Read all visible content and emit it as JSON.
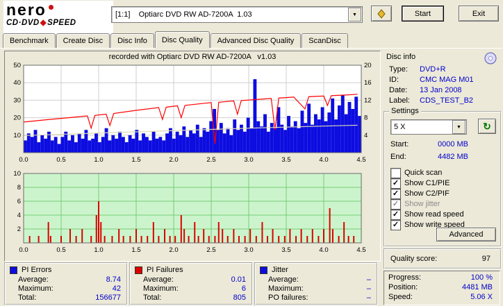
{
  "logo": {
    "line1": "nero",
    "line2_left": "CD·DVD",
    "line2_sep": "◆",
    "line2_right": "SPEED"
  },
  "icons": {
    "dropdown_arrow": "▼",
    "refresh": "↻",
    "check": "✓"
  },
  "toolbar": {
    "drive_selector": "[1:1]    Optiarc DVD RW AD-7200A  1.03",
    "start_label": "Start",
    "exit_label": "Exit"
  },
  "tabs": [
    {
      "label": "Benchmark",
      "active": false
    },
    {
      "label": "Create Disc",
      "active": false
    },
    {
      "label": "Disc Info",
      "active": false
    },
    {
      "label": "Disc Quality",
      "active": true
    },
    {
      "label": "Advanced Disc Quality",
      "active": false
    },
    {
      "label": "ScanDisc",
      "active": false
    }
  ],
  "disc_info": {
    "title": "Disc info",
    "rows": [
      {
        "label": "Type:",
        "value": "DVD+R"
      },
      {
        "label": "ID:",
        "value": "CMC MAG M01"
      },
      {
        "label": "Date:",
        "value": "13 Jan 2008"
      },
      {
        "label": "Label:",
        "value": "CDS_TEST_B2"
      }
    ]
  },
  "settings": {
    "title": "Settings",
    "speed_value": "5 X",
    "start_label": "Start:",
    "start_value": "0000 MB",
    "end_label": "End:",
    "end_value": "4482 MB",
    "checkboxes": [
      {
        "label": "Quick scan",
        "checked": false,
        "disabled": false
      },
      {
        "label": "Show C1/PIE",
        "checked": true,
        "disabled": false
      },
      {
        "label": "Show C2/PIF",
        "checked": true,
        "disabled": false
      },
      {
        "label": "Show jitter",
        "checked": true,
        "disabled": true
      },
      {
        "label": "Show read speed",
        "checked": true,
        "disabled": false
      },
      {
        "label": "Show write speed",
        "checked": true,
        "disabled": false
      }
    ],
    "advanced_label": "Advanced"
  },
  "quality": {
    "label": "Quality score:",
    "value": "97"
  },
  "progress": {
    "rows": [
      {
        "label": "Progress:",
        "value": "100 %"
      },
      {
        "label": "Position:",
        "value": "4481 MB"
      },
      {
        "label": "Speed:",
        "value": "5.06 X"
      }
    ]
  },
  "stats": [
    {
      "title": "PI Errors",
      "color": "#0d0de0",
      "rows": [
        {
          "label": "Average:",
          "value": "8.74"
        },
        {
          "label": "Maximum:",
          "value": "42"
        },
        {
          "label": "Total:",
          "value": "156677"
        }
      ]
    },
    {
      "title": "PI Failures",
      "color": "#dd0000",
      "rows": [
        {
          "label": "Average:",
          "value": "0.01"
        },
        {
          "label": "Maximum:",
          "value": "6"
        },
        {
          "label": "Total:",
          "value": "805"
        }
      ]
    },
    {
      "title": "Jitter",
      "color": "#0d0de0",
      "rows": [
        {
          "label": "Average:",
          "value": "–"
        },
        {
          "label": "Maximum:",
          "value": "–"
        },
        {
          "label": "PO failures:",
          "value": "–"
        }
      ]
    }
  ],
  "chart_data": [
    {
      "type": "bar",
      "title": "recorded with Optiarc DVD RW AD-7200A   v1.03",
      "xlim": [
        0,
        4.5
      ],
      "x_ticks": [
        "0.0",
        "0.5",
        "1.0",
        "1.5",
        "2.0",
        "2.5",
        "3.0",
        "3.5",
        "4.0",
        "4.5"
      ],
      "ylim_left": [
        0,
        50
      ],
      "yticks_left": [
        10,
        20,
        30,
        40,
        50
      ],
      "ylim_right": [
        0,
        20
      ],
      "yticks_right": [
        4,
        8,
        12,
        16,
        20
      ],
      "bar_series": {
        "name": "PI Errors",
        "color": "#0d0de0",
        "x_start": 0,
        "x_step": 0.045,
        "values": [
          7,
          11,
          9,
          13,
          6,
          10,
          8,
          12,
          7,
          9,
          5,
          9,
          12,
          7,
          10,
          6,
          11,
          8,
          13,
          7,
          8,
          11,
          6,
          9,
          14,
          7,
          10,
          8,
          12,
          9,
          6,
          10,
          8,
          13,
          7,
          11,
          9,
          7,
          12,
          8,
          9,
          7,
          11,
          14,
          8,
          12,
          10,
          15,
          9,
          13,
          11,
          16,
          9,
          14,
          12,
          18,
          25,
          13,
          17,
          11,
          14,
          10,
          19,
          13,
          16,
          12,
          20,
          14,
          42,
          18,
          15,
          22,
          12,
          17,
          14,
          26,
          16,
          13,
          21,
          15,
          18,
          14,
          24,
          17,
          28,
          16,
          22,
          19,
          26,
          18,
          23,
          31,
          19,
          27,
          33,
          22,
          29,
          25,
          32,
          21
        ]
      },
      "line_series": [
        {
          "name": "write speed",
          "color": "#ff0000",
          "axis": "left",
          "points": [
            [
              0,
              17.5
            ],
            [
              0.3,
              18.8
            ],
            [
              0.6,
              20
            ],
            [
              0.85,
              21
            ],
            [
              0.9,
              14
            ],
            [
              0.95,
              21.3
            ],
            [
              1.1,
              22
            ],
            [
              1.15,
              15.5
            ],
            [
              1.2,
              22.4
            ],
            [
              1.5,
              24.2
            ],
            [
              1.8,
              25.8
            ],
            [
              1.85,
              19
            ],
            [
              1.9,
              26
            ],
            [
              2.05,
              26.8
            ],
            [
              2.1,
              20
            ],
            [
              2.15,
              27
            ],
            [
              2.4,
              28.2
            ],
            [
              2.5,
              28.6
            ],
            [
              2.55,
              5
            ],
            [
              2.6,
              28.8
            ],
            [
              2.8,
              29.6
            ],
            [
              2.85,
              22
            ],
            [
              2.9,
              29.8
            ],
            [
              3.1,
              30.4
            ],
            [
              3.3,
              31
            ],
            [
              3.35,
              13
            ],
            [
              3.4,
              31.2
            ],
            [
              3.6,
              31.8
            ],
            [
              3.75,
              25
            ],
            [
              3.8,
              32
            ],
            [
              4.0,
              32.4
            ],
            [
              4.05,
              27
            ],
            [
              4.1,
              32.6
            ],
            [
              4.3,
              33
            ],
            [
              4.45,
              33.4
            ]
          ]
        },
        {
          "name": "read speed",
          "color": "#dedab8",
          "axis": "left",
          "points": [
            [
              0,
              9.8
            ],
            [
              0.5,
              10.5
            ],
            [
              1.0,
              11.2
            ],
            [
              1.5,
              11.9
            ],
            [
              2.0,
              12.6
            ],
            [
              2.5,
              13.3
            ],
            [
              3.0,
              14
            ],
            [
              3.5,
              14.6
            ],
            [
              4.0,
              15.2
            ],
            [
              4.45,
              15.7
            ]
          ]
        }
      ]
    },
    {
      "type": "bar",
      "title": "",
      "xlim": [
        0,
        4.5
      ],
      "x_ticks": [
        "0.0",
        "0.5",
        "1.0",
        "1.5",
        "2.0",
        "2.5",
        "3.0",
        "3.5",
        "4.0",
        "4.5"
      ],
      "ylim": [
        0,
        10
      ],
      "yticks": [
        2,
        4,
        6,
        8,
        10
      ],
      "plot_bg": "#ccf4cc",
      "grid_color": "#77cc77",
      "bar_series": {
        "name": "PI Failures",
        "color": "#dd0000",
        "bars": [
          [
            0.08,
            1
          ],
          [
            0.2,
            1
          ],
          [
            0.33,
            3
          ],
          [
            0.36,
            1
          ],
          [
            0.5,
            1
          ],
          [
            0.62,
            2
          ],
          [
            0.7,
            1
          ],
          [
            0.78,
            2
          ],
          [
            0.9,
            1
          ],
          [
            0.97,
            4
          ],
          [
            1.0,
            6
          ],
          [
            1.03,
            3
          ],
          [
            1.08,
            1
          ],
          [
            1.18,
            1
          ],
          [
            1.27,
            2
          ],
          [
            1.33,
            1
          ],
          [
            1.42,
            1
          ],
          [
            1.5,
            2
          ],
          [
            1.57,
            1
          ],
          [
            1.65,
            1
          ],
          [
            1.73,
            3
          ],
          [
            1.8,
            1
          ],
          [
            1.88,
            2
          ],
          [
            1.95,
            1
          ],
          [
            2.02,
            1
          ],
          [
            2.1,
            4
          ],
          [
            2.14,
            2
          ],
          [
            2.2,
            1
          ],
          [
            2.28,
            3
          ],
          [
            2.33,
            1
          ],
          [
            2.4,
            2
          ],
          [
            2.47,
            1
          ],
          [
            2.55,
            1
          ],
          [
            2.6,
            3
          ],
          [
            2.65,
            2
          ],
          [
            2.72,
            1
          ],
          [
            2.8,
            2
          ],
          [
            2.87,
            1
          ],
          [
            2.95,
            1
          ],
          [
            3.02,
            2
          ],
          [
            3.1,
            1
          ],
          [
            3.18,
            3
          ],
          [
            3.25,
            1
          ],
          [
            3.32,
            2
          ],
          [
            3.4,
            1
          ],
          [
            3.48,
            1
          ],
          [
            3.55,
            2
          ],
          [
            3.63,
            1
          ],
          [
            3.7,
            2
          ],
          [
            3.78,
            1
          ],
          [
            3.85,
            2
          ],
          [
            3.93,
            1
          ],
          [
            4.0,
            2
          ],
          [
            4.08,
            5
          ],
          [
            4.12,
            2
          ],
          [
            4.2,
            1
          ],
          [
            4.27,
            3
          ],
          [
            4.33,
            1
          ],
          [
            4.4,
            1
          ]
        ]
      }
    }
  ]
}
